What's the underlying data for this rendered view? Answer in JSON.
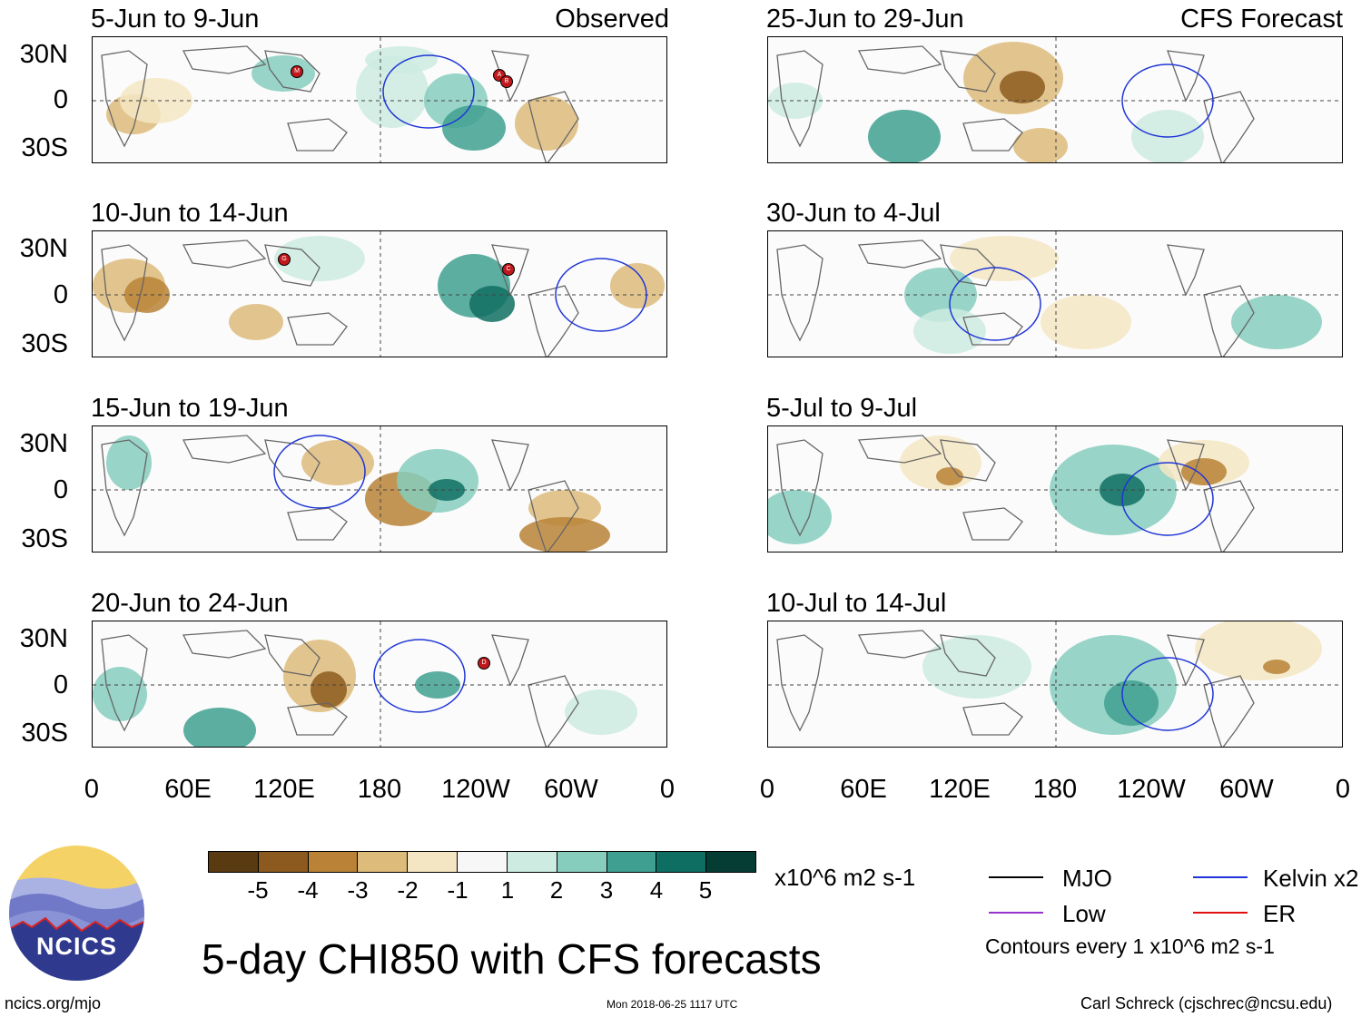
{
  "figure": {
    "title": "5-day CHI850 with CFS forecasts",
    "timestamp": "Mon 2018-06-25 1117 UTC",
    "source_url": "ncics.org/mjo",
    "author": "Carl Schreck (cjschrec@ncsu.edu)",
    "logo_text": "NCICS"
  },
  "axes": {
    "lat_labels": [
      "30N",
      "0",
      "30S"
    ],
    "lon_labels": [
      "0",
      "60E",
      "120E",
      "180",
      "120W",
      "60W",
      "0"
    ]
  },
  "panels": [
    {
      "id": "p1",
      "date": "5-Jun to 9-Jun",
      "label": "Observed"
    },
    {
      "id": "p2",
      "date": "10-Jun to 14-Jun",
      "label": ""
    },
    {
      "id": "p3",
      "date": "15-Jun to 19-Jun",
      "label": ""
    },
    {
      "id": "p4",
      "date": "20-Jun to 24-Jun",
      "label": ""
    },
    {
      "id": "p5",
      "date": "25-Jun to 29-Jun",
      "label": "CFS Forecast"
    },
    {
      "id": "p6",
      "date": "30-Jun to 4-Jul",
      "label": ""
    },
    {
      "id": "p7",
      "date": "5-Jul to 9-Jul",
      "label": ""
    },
    {
      "id": "p8",
      "date": "10-Jul to 14-Jul",
      "label": ""
    }
  ],
  "colorbar": {
    "units": "x10^6 m2 s-1",
    "ticks": [
      "-5",
      "-4",
      "-3",
      "-2",
      "-1",
      "1",
      "2",
      "3",
      "4",
      "5"
    ],
    "colors": [
      "#5a3a10",
      "#8c5a1e",
      "#b98236",
      "#ddbb7a",
      "#f5e6c3",
      "#f7f7f7",
      "#cdebe1",
      "#86cdbd",
      "#3fa091",
      "#0f6e62",
      "#053d35"
    ]
  },
  "legend": {
    "items": [
      {
        "label": "MJO",
        "color": "#000000"
      },
      {
        "label": "Kelvin x2",
        "color": "#1f35d6"
      },
      {
        "label": "Low",
        "color": "#9933cc"
      },
      {
        "label": "ER",
        "color": "#e01010"
      }
    ],
    "contour_note": "Contours every 1 x10^6 m2 s-1"
  },
  "storm_markers": [
    {
      "panel": "p1",
      "letters": [
        "M",
        "A",
        "B"
      ]
    },
    {
      "panel": "p2",
      "letters": [
        "G",
        "C"
      ]
    },
    {
      "panel": "p4",
      "letters": [
        "D"
      ]
    }
  ]
}
